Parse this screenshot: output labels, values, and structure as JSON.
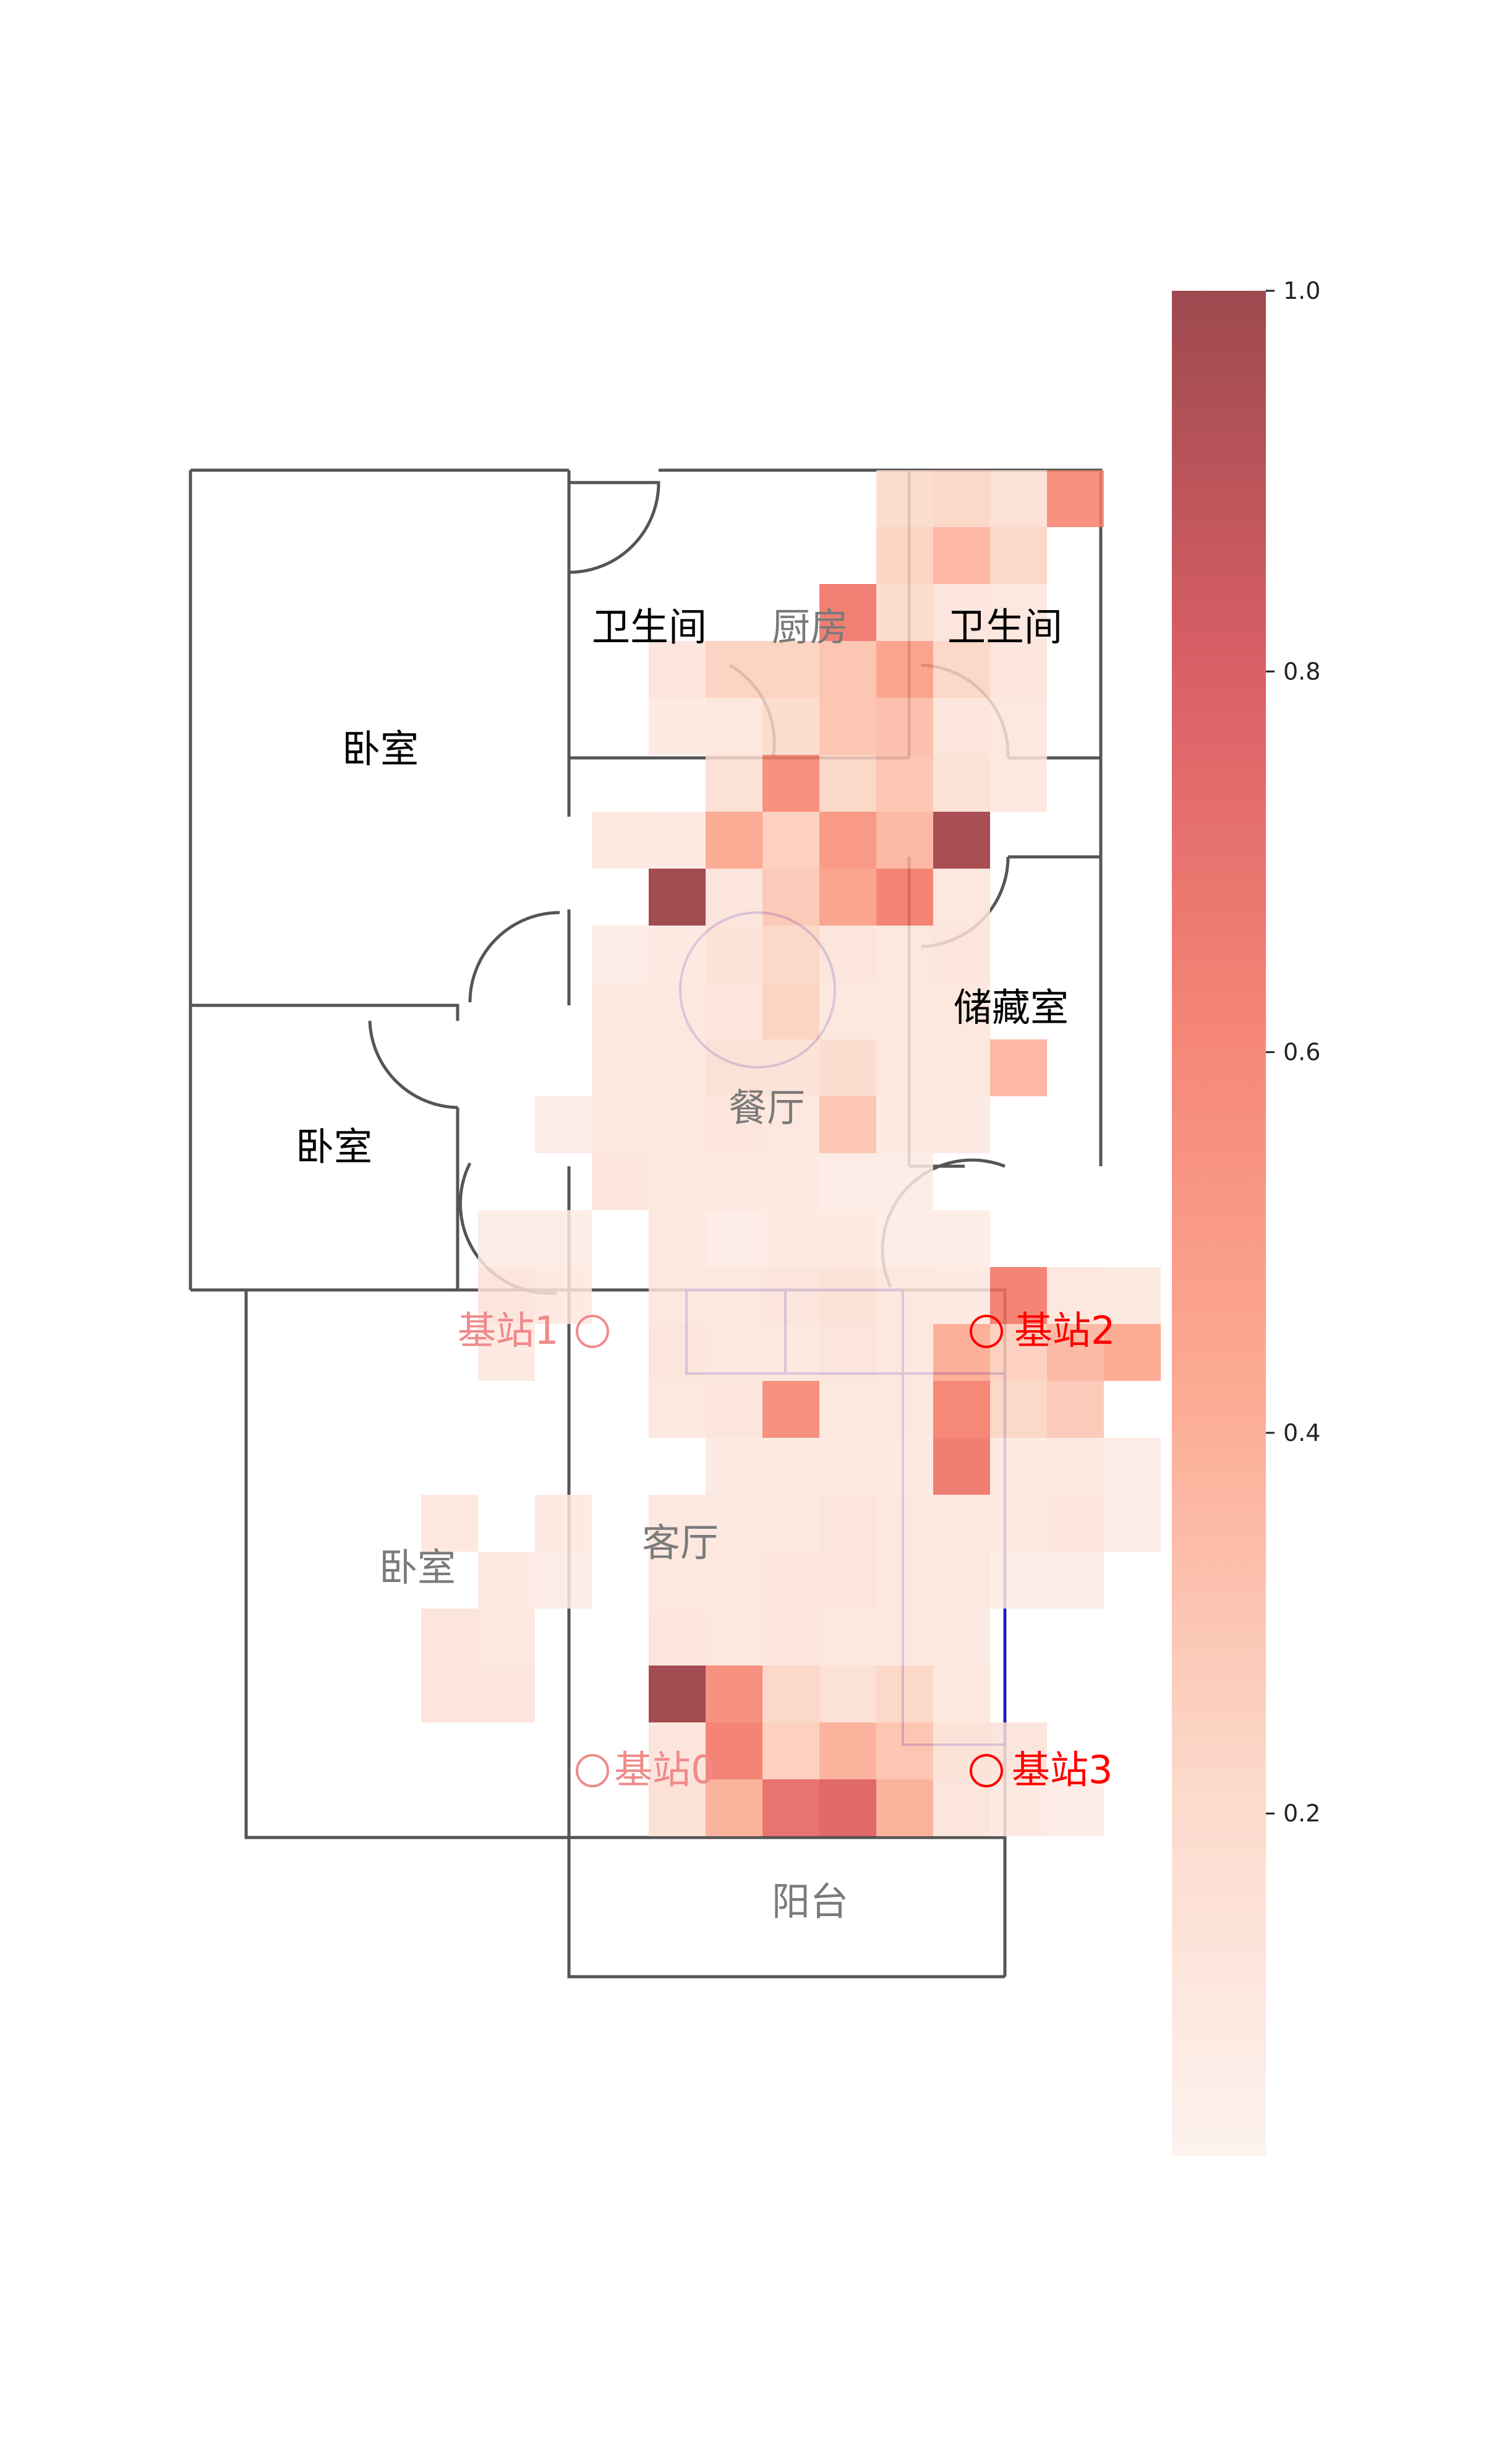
{
  "chart_data": {
    "type": "heatmap",
    "title": "",
    "colormap": {
      "low": "#fdf0eb",
      "mid": "#f4715f",
      "high": "#8b2a30",
      "alpha": 0.85
    },
    "colorbar": {
      "min": 0.02,
      "max": 1.0,
      "ticks": [
        "0.2",
        "0.4",
        "0.6",
        "0.8",
        "1.0"
      ]
    },
    "grid": {
      "rows": 26,
      "cols": 14
    },
    "cells": [
      [
        0,
        9,
        0.55
      ],
      [
        0,
        6,
        0.18
      ],
      [
        0,
        7,
        0.22
      ],
      [
        0,
        8,
        0.15
      ],
      [
        1,
        6,
        0.24
      ],
      [
        1,
        7,
        0.36
      ],
      [
        1,
        8,
        0.22
      ],
      [
        2,
        5,
        0.64
      ],
      [
        2,
        6,
        0.18
      ],
      [
        2,
        7,
        0.12
      ],
      [
        2,
        8,
        0.1
      ],
      [
        3,
        2,
        0.12
      ],
      [
        3,
        3,
        0.24
      ],
      [
        3,
        4,
        0.24
      ],
      [
        3,
        5,
        0.3
      ],
      [
        3,
        6,
        0.45
      ],
      [
        3,
        7,
        0.22
      ],
      [
        3,
        8,
        0.12
      ],
      [
        4,
        2,
        0.08
      ],
      [
        4,
        3,
        0.1
      ],
      [
        4,
        4,
        0.18
      ],
      [
        4,
        5,
        0.3
      ],
      [
        4,
        6,
        0.32
      ],
      [
        4,
        7,
        0.12
      ],
      [
        4,
        8,
        0.1
      ],
      [
        5,
        3,
        0.15
      ],
      [
        5,
        4,
        0.55
      ],
      [
        5,
        5,
        0.22
      ],
      [
        5,
        6,
        0.3
      ],
      [
        5,
        7,
        0.14
      ],
      [
        5,
        8,
        0.1
      ],
      [
        6,
        1,
        0.1
      ],
      [
        6,
        2,
        0.08
      ],
      [
        6,
        3,
        0.42
      ],
      [
        6,
        4,
        0.25
      ],
      [
        6,
        5,
        0.5
      ],
      [
        6,
        6,
        0.35
      ],
      [
        6,
        7,
        0.96
      ],
      [
        7,
        2,
        0.98
      ],
      [
        7,
        3,
        0.12
      ],
      [
        7,
        4,
        0.28
      ],
      [
        7,
        5,
        0.45
      ],
      [
        7,
        6,
        0.62
      ],
      [
        7,
        7,
        0.1
      ],
      [
        8,
        1,
        0.06
      ],
      [
        8,
        2,
        0.08
      ],
      [
        8,
        3,
        0.14
      ],
      [
        8,
        4,
        0.22
      ],
      [
        8,
        5,
        0.12
      ],
      [
        8,
        6,
        0.1
      ],
      [
        8,
        7,
        0.12
      ],
      [
        9,
        1,
        0.08
      ],
      [
        9,
        2,
        0.1
      ],
      [
        9,
        3,
        0.12
      ],
      [
        9,
        4,
        0.24
      ],
      [
        9,
        5,
        0.1
      ],
      [
        9,
        6,
        0.1
      ],
      [
        9,
        7,
        0.1
      ],
      [
        10,
        1,
        0.08
      ],
      [
        10,
        2,
        0.1
      ],
      [
        10,
        3,
        0.15
      ],
      [
        10,
        4,
        0.14
      ],
      [
        10,
        5,
        0.18
      ],
      [
        10,
        6,
        0.1
      ],
      [
        10,
        7,
        0.1
      ],
      [
        10,
        8,
        0.36
      ],
      [
        11,
        0,
        0.06
      ],
      [
        11,
        1,
        0.08
      ],
      [
        11,
        2,
        0.1
      ],
      [
        11,
        3,
        0.12
      ],
      [
        11,
        4,
        0.1
      ],
      [
        11,
        5,
        0.3
      ],
      [
        11,
        6,
        0.08
      ],
      [
        11,
        7,
        0.08
      ],
      [
        12,
        1,
        0.12
      ],
      [
        12,
        2,
        0.1
      ],
      [
        12,
        3,
        0.1
      ],
      [
        12,
        4,
        0.08
      ],
      [
        12,
        5,
        0.06
      ],
      [
        12,
        6,
        0.06
      ],
      [
        13,
        -1,
        0.06
      ],
      [
        13,
        0,
        0.06
      ],
      [
        13,
        2,
        0.1
      ],
      [
        13,
        3,
        0.06
      ],
      [
        13,
        4,
        0.08
      ],
      [
        13,
        5,
        0.08
      ],
      [
        13,
        6,
        0.06
      ],
      [
        13,
        7,
        0.06
      ],
      [
        14,
        -1,
        0.12
      ],
      [
        14,
        0,
        0.08
      ],
      [
        14,
        2,
        0.1
      ],
      [
        14,
        3,
        0.1
      ],
      [
        14,
        4,
        0.12
      ],
      [
        14,
        5,
        0.14
      ],
      [
        14,
        6,
        0.1
      ],
      [
        14,
        7,
        0.08
      ],
      [
        14,
        8,
        0.62
      ],
      [
        14,
        9,
        0.1
      ],
      [
        14,
        10,
        0.08
      ],
      [
        15,
        -1,
        0.08
      ],
      [
        15,
        2,
        0.12
      ],
      [
        15,
        3,
        0.1
      ],
      [
        15,
        4,
        0.1
      ],
      [
        15,
        5,
        0.12
      ],
      [
        15,
        6,
        0.1
      ],
      [
        15,
        7,
        0.4
      ],
      [
        15,
        8,
        0.25
      ],
      [
        15,
        9,
        0.35
      ],
      [
        15,
        10,
        0.42
      ],
      [
        16,
        2,
        0.1
      ],
      [
        16,
        3,
        0.12
      ],
      [
        16,
        4,
        0.55
      ],
      [
        16,
        5,
        0.1
      ],
      [
        16,
        6,
        0.1
      ],
      [
        16,
        7,
        0.6
      ],
      [
        16,
        8,
        0.22
      ],
      [
        16,
        9,
        0.28
      ],
      [
        17,
        3,
        0.08
      ],
      [
        17,
        4,
        0.08
      ],
      [
        17,
        5,
        0.08
      ],
      [
        17,
        6,
        0.08
      ],
      [
        17,
        7,
        0.65
      ],
      [
        17,
        8,
        0.08
      ],
      [
        17,
        9,
        0.08
      ],
      [
        17,
        10,
        0.06
      ],
      [
        18,
        -2,
        0.1
      ],
      [
        18,
        0,
        0.08
      ],
      [
        18,
        2,
        0.1
      ],
      [
        18,
        3,
        0.1
      ],
      [
        18,
        4,
        0.1
      ],
      [
        18,
        5,
        0.12
      ],
      [
        18,
        6,
        0.1
      ],
      [
        18,
        7,
        0.1
      ],
      [
        18,
        8,
        0.08
      ],
      [
        18,
        9,
        0.12
      ],
      [
        18,
        10,
        0.06
      ],
      [
        19,
        -1,
        0.08
      ],
      [
        19,
        0,
        0.06
      ],
      [
        19,
        2,
        0.1
      ],
      [
        19,
        3,
        0.1
      ],
      [
        19,
        4,
        0.12
      ],
      [
        19,
        5,
        0.12
      ],
      [
        19,
        6,
        0.1
      ],
      [
        19,
        7,
        0.1
      ],
      [
        19,
        8,
        0.06
      ],
      [
        19,
        9,
        0.06
      ],
      [
        20,
        -2,
        0.12
      ],
      [
        20,
        -1,
        0.1
      ],
      [
        20,
        2,
        0.12
      ],
      [
        20,
        3,
        0.1
      ],
      [
        20,
        4,
        0.12
      ],
      [
        20,
        5,
        0.1
      ],
      [
        20,
        6,
        0.1
      ],
      [
        20,
        7,
        0.08
      ],
      [
        21,
        -2,
        0.12
      ],
      [
        21,
        -1,
        0.12
      ],
      [
        21,
        2,
        0.98
      ],
      [
        21,
        3,
        0.55
      ],
      [
        21,
        4,
        0.22
      ],
      [
        21,
        5,
        0.15
      ],
      [
        21,
        6,
        0.22
      ],
      [
        21,
        7,
        0.1
      ],
      [
        22,
        2,
        0.12
      ],
      [
        22,
        3,
        0.62
      ],
      [
        22,
        4,
        0.25
      ],
      [
        22,
        5,
        0.38
      ],
      [
        22,
        6,
        0.3
      ],
      [
        22,
        7,
        0.14
      ],
      [
        22,
        8,
        0.12
      ],
      [
        23,
        2,
        0.15
      ],
      [
        23,
        3,
        0.38
      ],
      [
        23,
        4,
        0.7
      ],
      [
        23,
        5,
        0.75
      ],
      [
        23,
        6,
        0.38
      ],
      [
        23,
        7,
        0.12
      ],
      [
        23,
        8,
        0.08
      ],
      [
        23,
        9,
        0.06
      ]
    ]
  },
  "rooms": [
    {
      "name": "卧室",
      "faded": false
    },
    {
      "name": "卫生间",
      "faded": false
    },
    {
      "name": "厨房",
      "faded": true
    },
    {
      "name": "卫生间",
      "faded": false
    },
    {
      "name": "储藏室",
      "faded": false
    },
    {
      "name": "卧室",
      "faded": false
    },
    {
      "name": "餐厅",
      "faded": true
    },
    {
      "name": "客厅",
      "faded": true
    },
    {
      "name": "卧室",
      "faded": true
    },
    {
      "name": "阳台",
      "faded": true
    }
  ],
  "stations": [
    {
      "name": "基站0",
      "faded": true
    },
    {
      "name": "基站1",
      "faded": true
    },
    {
      "name": "基站2",
      "faded": false
    },
    {
      "name": "基站3",
      "faded": false
    }
  ]
}
